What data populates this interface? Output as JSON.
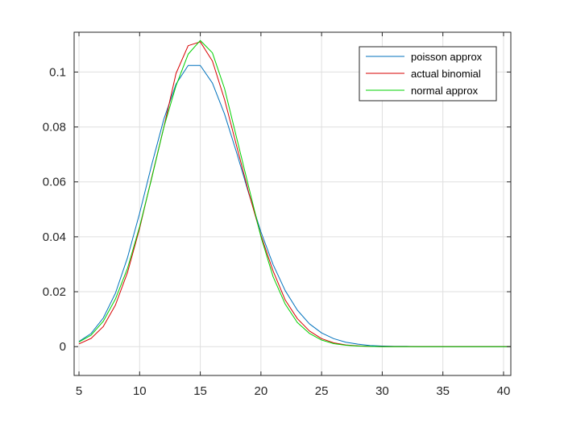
{
  "chart_data": {
    "type": "line",
    "title": "",
    "xlabel": "",
    "ylabel": "",
    "xlim": [
      4.6,
      40.6
    ],
    "ylim": [
      -0.0105,
      0.1145
    ],
    "xticks": [
      5,
      10,
      15,
      20,
      25,
      30,
      35,
      40
    ],
    "xtick_labels": [
      "5",
      "10",
      "15",
      "20",
      "25",
      "30",
      "35",
      "40"
    ],
    "yticks": [
      0,
      0.02,
      0.04,
      0.06,
      0.08,
      0.1
    ],
    "ytick_labels": [
      "0",
      "0.02",
      "0.04",
      "0.06",
      "0.08",
      "0.1"
    ],
    "grid": true,
    "legend_position": "top-right",
    "x": [
      5,
      6,
      7,
      8,
      9,
      10,
      11,
      12,
      13,
      14,
      15,
      16,
      17,
      18,
      19,
      20,
      21,
      22,
      23,
      24,
      25,
      26,
      27,
      28,
      29,
      30,
      31,
      32,
      33,
      34,
      35,
      36,
      37,
      38,
      39,
      40,
      41
    ],
    "series": [
      {
        "name": "poisson approx",
        "color": "#0072BD",
        "values": [
          0.0019,
          0.0048,
          0.0104,
          0.0194,
          0.0324,
          0.0486,
          0.0663,
          0.0829,
          0.0956,
          0.1024,
          0.1024,
          0.096,
          0.0847,
          0.0706,
          0.0557,
          0.0418,
          0.0299,
          0.0204,
          0.0133,
          0.0083,
          0.005,
          0.0029,
          0.0016,
          0.0009,
          0.0004,
          0.0002,
          0.0001,
          0.0001,
          0,
          0,
          0,
          0,
          0,
          0,
          0,
          0,
          0
        ]
      },
      {
        "name": "actual binomial",
        "color": "#D70000",
        "values": [
          0.001,
          0.003,
          0.0073,
          0.0151,
          0.027,
          0.0431,
          0.0617,
          0.08,
          0.0995,
          0.1096,
          0.111,
          0.104,
          0.09,
          0.073,
          0.056,
          0.0405,
          0.0276,
          0.017,
          0.0102,
          0.0057,
          0.0029,
          0.0014,
          0.0006,
          0.0003,
          0.0001,
          0,
          0,
          0,
          0,
          0,
          0,
          0,
          0,
          0,
          0,
          0,
          0
        ]
      },
      {
        "name": "normal approx",
        "color": "#00D000",
        "values": [
          0.0017,
          0.0042,
          0.0092,
          0.0173,
          0.0285,
          0.0437,
          0.0614,
          0.08,
          0.095,
          0.1065,
          0.1115,
          0.107,
          0.094,
          0.076,
          0.058,
          0.04,
          0.0255,
          0.0155,
          0.0088,
          0.0048,
          0.0024,
          0.0011,
          0.0005,
          0.0002,
          0.0001,
          0,
          0,
          0,
          0,
          0,
          0,
          0,
          0,
          0,
          0,
          0,
          0
        ]
      }
    ]
  }
}
